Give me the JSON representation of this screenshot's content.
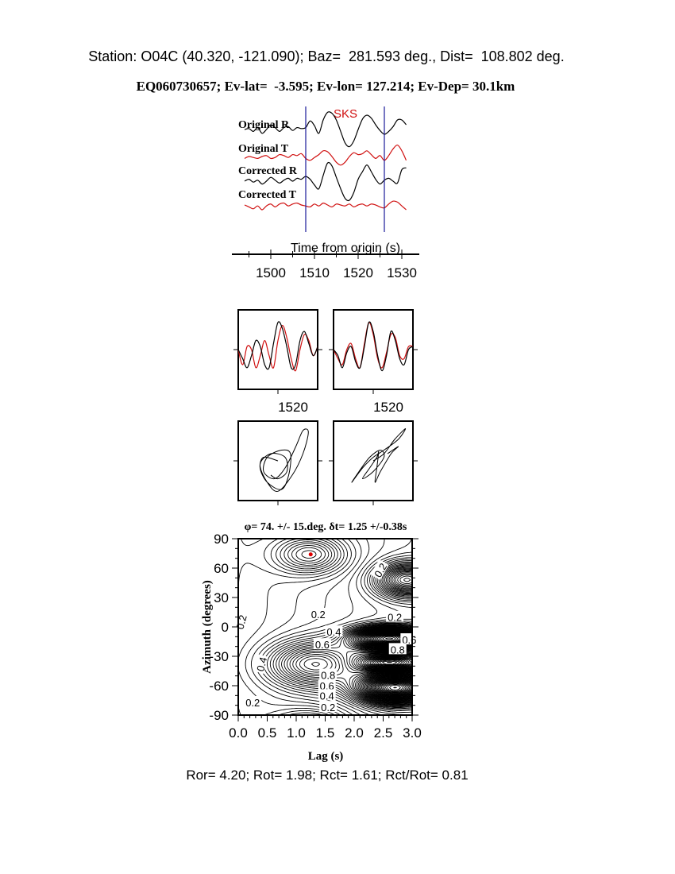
{
  "header": {
    "station_line": "Station: O04C (40.320, -121.090); Baz=  281.593 deg., Dist=  108.802 deg.",
    "event_line": "EQ060730657; Ev-lat=  -3.595; Ev-lon= 127.214; Ev-Dep= 30.1km"
  },
  "footer": "Ror= 4.20; Rot= 1.98; Rct= 1.61; Rct/Rot= 0.81",
  "colors": {
    "black": "#000000",
    "red": "#d01010",
    "window": "#1a1a9a"
  },
  "chart_data": [
    {
      "type": "line",
      "phase_label": "SKS",
      "xlabel": "Time from origin (s)",
      "xlim": [
        1494,
        1531
      ],
      "xticks": [
        1500,
        1510,
        1520,
        1530
      ],
      "window_markers": [
        1508,
        1526
      ],
      "t_start": 1494,
      "t_step": 1,
      "series": [
        {
          "name": "Original R",
          "color": "#000000",
          "values": [
            0,
            0.05,
            -0.1,
            0.1,
            -0.2,
            0,
            0.25,
            0.1,
            -0.1,
            0.1,
            0.15,
            -0.05,
            0.1,
            0.05,
            0.1,
            0.45,
            0.2,
            -0.2,
            0.5,
            0.9,
            0.85,
            0.5,
            -0.1,
            -0.7,
            -0.9,
            -0.6,
            0,
            0.55,
            0.75,
            0.6,
            0.25,
            -0.05,
            -0.25,
            -0.1,
            0.15,
            0.5,
            0.5,
            0.25
          ]
        },
        {
          "name": "Original T",
          "color": "#d01010",
          "values": [
            -0.1,
            0,
            -0.05,
            -0.1,
            0,
            0.05,
            -0.1,
            -0.05,
            0.1,
            0.05,
            -0.05,
            0.1,
            0.05,
            0.15,
            -0.1,
            -0.2,
            -0.05,
            0.1,
            0.3,
            0.25,
            0,
            -0.3,
            -0.45,
            -0.3,
            0,
            0.2,
            0.1,
            0.15,
            0.3,
            0.1,
            -0.1,
            0.05,
            -0.2,
            0.05,
            0.4,
            0.6,
            0.3,
            -0.2
          ]
        },
        {
          "name": "Corrected R",
          "color": "#000000",
          "values": [
            0,
            0.1,
            -0.05,
            0.05,
            -0.15,
            0,
            0.2,
            0.05,
            -0.1,
            0.05,
            0.15,
            0,
            0.15,
            0.1,
            0.25,
            0.1,
            -0.2,
            -0.4,
            0.3,
            0.95,
            0.8,
            0.2,
            -0.4,
            -0.9,
            -1.0,
            -0.6,
            0.1,
            0.5,
            0.85,
            0.5,
            0.1,
            -0.15,
            0.05,
            0.15,
            0,
            -0.1,
            0.6,
            0.7
          ]
        },
        {
          "name": "Corrected T",
          "color": "#d01010",
          "values": [
            0,
            -0.1,
            -0.2,
            -0.05,
            -0.25,
            -0.05,
            0.05,
            -0.1,
            0.05,
            0.1,
            -0.05,
            0.05,
            0.1,
            0,
            -0.05,
            -0.1,
            0.05,
            -0.05,
            0.1,
            0,
            -0.1,
            0.05,
            0,
            -0.05,
            0.05,
            -0.1,
            0,
            0.05,
            -0.05,
            0.05,
            0,
            -0.1,
            -0.15,
            0.05,
            0.2,
            0.15,
            -0.05,
            -0.25
          ]
        }
      ]
    },
    {
      "type": "line",
      "description_label": "waveform comparison",
      "xtick_label": "1520",
      "panels": [
        {
          "black": [
            0,
            -0.3,
            -0.6,
            -0.2,
            0.3,
            0.1,
            -0.5,
            -0.6,
            0.2,
            0.9,
            0.7,
            0.1,
            -0.6,
            -0.5,
            0.3,
            0.6,
            0.2,
            -0.2,
            0.1
          ],
          "red": [
            0,
            -0.5,
            0.1,
            0.0,
            -0.6,
            -0.2,
            0.3,
            -0.2,
            -0.6,
            0.3,
            0.8,
            0.4,
            -0.3,
            -0.7,
            0.0,
            0.5,
            0.3,
            -0.2,
            0.1
          ]
        },
        {
          "black": [
            0,
            -0.2,
            -0.6,
            -0.1,
            0.1,
            -0.4,
            -0.6,
            0.1,
            0.9,
            0.6,
            -0.2,
            -0.7,
            -0.2,
            0.6,
            0.3,
            -0.3,
            -0.5,
            0.0,
            0.1
          ],
          "red": [
            0,
            -0.3,
            -0.5,
            0.0,
            0.2,
            -0.3,
            -0.6,
            0.2,
            0.9,
            0.5,
            -0.3,
            -0.6,
            -0.1,
            0.5,
            0.4,
            -0.2,
            -0.3,
            0.1,
            0.1
          ]
        }
      ]
    },
    {
      "type": "line",
      "description_label": "particle motion",
      "xtick_label": "",
      "panels": [
        {
          "points": [
            [
              0,
              0
            ],
            [
              -0.4,
              0.1
            ],
            [
              -0.5,
              -0.2
            ],
            [
              -0.3,
              -0.6
            ],
            [
              0.1,
              -0.8
            ],
            [
              0.3,
              -0.4
            ],
            [
              0.35,
              0.2
            ],
            [
              0.1,
              0.3
            ],
            [
              -0.3,
              0.1
            ],
            [
              -0.4,
              -0.3
            ],
            [
              -0.1,
              -0.5
            ],
            [
              0.2,
              -0.2
            ],
            [
              0.5,
              0.4
            ],
            [
              0.7,
              0.85
            ],
            [
              0.85,
              0.8
            ],
            [
              0.7,
              0.2
            ],
            [
              0.4,
              -0.4
            ],
            [
              0,
              -0.85
            ],
            [
              -0.3,
              -0.6
            ],
            [
              -0.5,
              -0.1
            ],
            [
              -0.2,
              0.2
            ],
            [
              0.2,
              0.1
            ],
            [
              0.25,
              -0.3
            ],
            [
              0,
              -0.5
            ],
            [
              -0.2,
              -0.4
            ]
          ]
        },
        {
          "points": [
            [
              0,
              0
            ],
            [
              0.3,
              0.2
            ],
            [
              0.6,
              0.6
            ],
            [
              0.9,
              0.9
            ],
            [
              0.7,
              0.6
            ],
            [
              0.3,
              0.3
            ],
            [
              0,
              0.1
            ],
            [
              -0.3,
              -0.2
            ],
            [
              -0.6,
              -0.6
            ],
            [
              -0.4,
              -0.3
            ],
            [
              -0.1,
              0.1
            ],
            [
              0.2,
              0.3
            ],
            [
              0.3,
              0.1
            ],
            [
              0,
              -0.3
            ],
            [
              -0.3,
              -0.5
            ],
            [
              -0.1,
              -0.2
            ],
            [
              0.1,
              0.1
            ],
            [
              0.15,
              0.25
            ],
            [
              0.1,
              -0.2
            ],
            [
              0.05,
              -0.6
            ],
            [
              0.2,
              -0.3
            ],
            [
              0.5,
              0.2
            ],
            [
              0.7,
              0.4
            ],
            [
              0.4,
              0.2
            ]
          ]
        }
      ]
    },
    {
      "type": "heatmap",
      "title": "φ= 74. +/- 15.deg. δt= 1.25 +/-0.38s",
      "xlabel": "Lag (s)",
      "ylabel": "Azimuth (degrees)",
      "xlim": [
        0,
        3
      ],
      "ylim": [
        -90,
        90
      ],
      "xticks": [
        "0.0",
        "0.5",
        "1.0",
        "1.5",
        "2.0",
        "2.5",
        "3.0"
      ],
      "yticks": [
        "90",
        "60",
        "30",
        "0",
        "-30",
        "-60",
        "-90"
      ],
      "best_fit": {
        "lag": 1.25,
        "azimuth": 74,
        "color": "#e00000"
      },
      "contour_labels": [
        {
          "text": "0.2",
          "lag": 2.45,
          "azimuth": 58,
          "rotate": -60
        },
        {
          "text": "0.2",
          "lag": 1.38,
          "azimuth": 13
        },
        {
          "text": "0.2",
          "lag": 2.7,
          "azimuth": 10
        },
        {
          "text": "0.2",
          "lag": 0.05,
          "azimuth": 5,
          "rotate": -75
        },
        {
          "text": "0.4",
          "lag": 1.65,
          "azimuth": -5
        },
        {
          "text": "0.6",
          "lag": 1.45,
          "azimuth": -18
        },
        {
          "text": "0.6",
          "lag": 2.95,
          "azimuth": -13
        },
        {
          "text": "0.8",
          "lag": 2.75,
          "azimuth": -23
        },
        {
          "text": "0.4",
          "lag": 0.4,
          "azimuth": -38,
          "rotate": -75
        },
        {
          "text": "0.8",
          "lag": 1.55,
          "azimuth": -49
        },
        {
          "text": "0.6",
          "lag": 1.53,
          "azimuth": -60
        },
        {
          "text": "0.4",
          "lag": 1.53,
          "azimuth": -70
        },
        {
          "text": "0.2",
          "lag": 1.55,
          "azimuth": -82
        },
        {
          "text": "0.2",
          "lag": 0.25,
          "azimuth": -77
        }
      ]
    }
  ]
}
